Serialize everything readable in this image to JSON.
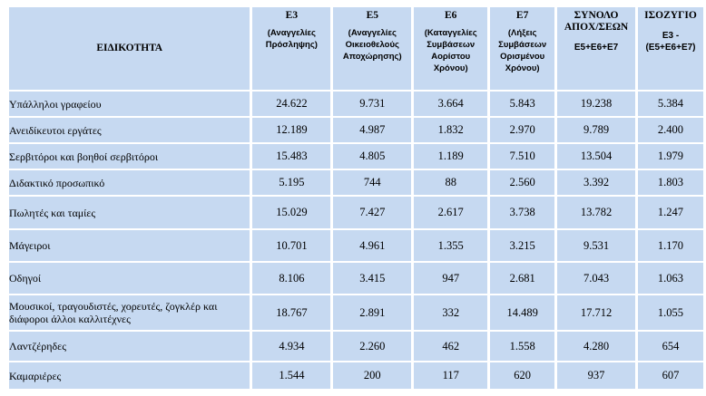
{
  "table": {
    "header": {
      "specialty": "ΕΙΔΙΚΟΤΗΤΑ",
      "e3_code": "Ε3",
      "e3_desc": "(Αναγγελίες Πρόσληψης)",
      "e5_code": "Ε5",
      "e5_desc": "(Αναγγελίες Οικειοθελούς Αποχώρησης)",
      "e6_code": "Ε6",
      "e6_desc": "(Καταγγελίες Συμβάσεων Αορίστου Χρόνου)",
      "e7_code": "Ε7",
      "e7_desc": "(Λήξεις Συμβάσεων Ορισμένου Χρόνου)",
      "total_title": "ΣΥΝΟΛΟ ΑΠΟΧ/ΣΕΩΝ",
      "total_formula": "Ε5+Ε6+Ε7",
      "balance_title": "ΙΣΟΖΥΓΙΟ",
      "balance_formula": "Ε3 - (Ε5+Ε6+Ε7)"
    },
    "rows": [
      {
        "specialty": "Υπάλληλοι γραφείου",
        "e3": "24.622",
        "e5": "9.731",
        "e6": "3.664",
        "e7": "5.843",
        "total": "19.238",
        "balance": "5.384"
      },
      {
        "specialty": "Ανειδίκευτοι εργάτες",
        "e3": "12.189",
        "e5": "4.987",
        "e6": "1.832",
        "e7": "2.970",
        "total": "9.789",
        "balance": "2.400"
      },
      {
        "specialty": "Σερβιτόροι και βοηθοί σερβιτόροι",
        "e3": "15.483",
        "e5": "4.805",
        "e6": "1.189",
        "e7": "7.510",
        "total": "13.504",
        "balance": "1.979"
      },
      {
        "specialty": "Διδακτικό προσωπικό",
        "e3": "5.195",
        "e5": "744",
        "e6": "88",
        "e7": "2.560",
        "total": "3.392",
        "balance": "1.803"
      },
      {
        "specialty": "Πωλητές και ταμίες",
        "e3": "15.029",
        "e5": "7.427",
        "e6": "2.617",
        "e7": "3.738",
        "total": "13.782",
        "balance": "1.247"
      },
      {
        "specialty": "Μάγειροι",
        "e3": "10.701",
        "e5": "4.961",
        "e6": "1.355",
        "e7": "3.215",
        "total": "9.531",
        "balance": "1.170"
      },
      {
        "specialty": "Οδηγοί",
        "e3": "8.106",
        "e5": "3.415",
        "e6": "947",
        "e7": "2.681",
        "total": "7.043",
        "balance": "1.063"
      },
      {
        "specialty": "Μουσικοί, τραγουδιστές, χορευτές, ζογκλέρ και διάφοροι άλλοι καλλιτέχνες",
        "e3": "18.767",
        "e5": "2.891",
        "e6": "332",
        "e7": "14.489",
        "total": "17.712",
        "balance": "1.055"
      },
      {
        "specialty": "Λαντζέρηδες",
        "e3": "4.934",
        "e5": "2.260",
        "e6": "462",
        "e7": "1.558",
        "total": "4.280",
        "balance": "654"
      },
      {
        "specialty": "Καμαριέρες",
        "e3": "1.544",
        "e5": "200",
        "e6": "117",
        "e7": "620",
        "total": "937",
        "balance": "607"
      }
    ]
  }
}
